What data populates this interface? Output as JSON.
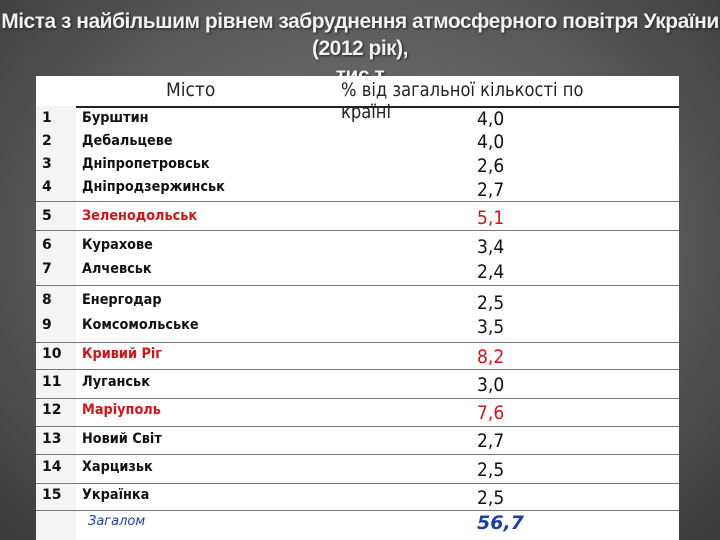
{
  "title": {
    "line1": "Міста з найбільшим рівнем забруднення атмосферного повітря України (2012 рік),",
    "line2": "тис.т"
  },
  "header": {
    "city": "Місто",
    "percent": "% від загальної кількості по країні"
  },
  "rows": [
    {
      "num": "1",
      "city": "Бурштин",
      "value": "4,0"
    },
    {
      "num": "2",
      "city": "Дебальцеве",
      "value": "4,0"
    },
    {
      "num": "3",
      "city": "Дніпропетровськ",
      "value": "2,6"
    },
    {
      "num": "4",
      "city": "Дніпродзержинськ",
      "value": "2,7"
    },
    {
      "num": "5",
      "city": "Зеленодольськ",
      "value": "5,1"
    },
    {
      "num": "6",
      "city": "Курахове",
      "value": "3,4"
    },
    {
      "num": "7",
      "city": "Алчевськ",
      "value": "2,4"
    },
    {
      "num": "8",
      "city": "Енергодар",
      "value": "2,5"
    },
    {
      "num": "9",
      "city": "Комсомольське",
      "value": "3,5"
    },
    {
      "num": "10",
      "city": "Кривий Ріг",
      "value": "8,2"
    },
    {
      "num": "11",
      "city": "Луганськ",
      "value": "3,0"
    },
    {
      "num": "12",
      "city": "Маріуполь",
      "value": "7,6"
    },
    {
      "num": "13",
      "city": "Новий Світ",
      "value": "2,7"
    },
    {
      "num": "14",
      "city": "Харцизьк",
      "value": "2,5"
    },
    {
      "num": "15",
      "city": "Українка",
      "value": "2,5"
    }
  ],
  "total": {
    "label": "Загалом",
    "value": "56,7"
  },
  "colors": {
    "highlight": "#d21414",
    "total": "#1c3fa8"
  }
}
